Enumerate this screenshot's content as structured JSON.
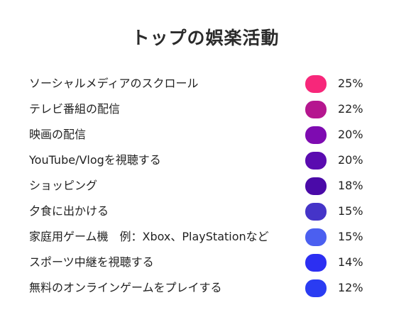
{
  "chart_data": {
    "type": "table",
    "title": "トップの娯楽活動",
    "categories": [
      "ソーシャルメディアのスクロール",
      "テレビ番組の配信",
      "映画の配信",
      "YouTube/Vlogを視聴する",
      "ショッピング",
      "夕食に出かける",
      "家庭用ゲーム機　例：Xbox、PlayStationなど",
      "スポーツ中継を視聴する",
      "無料のオンラインゲームをプレイする"
    ],
    "values": [
      25,
      22,
      20,
      20,
      18,
      15,
      15,
      14,
      12
    ],
    "value_labels": [
      "25%",
      "22%",
      "20%",
      "20%",
      "18%",
      "15%",
      "15%",
      "14%",
      "12%"
    ],
    "colors": [
      "#f7277a",
      "#b5168f",
      "#7e0bb1",
      "#5a0bb0",
      "#4a0aa8",
      "#4534c8",
      "#4b5ff0",
      "#2c2ff2",
      "#2a3cf2"
    ],
    "unit": "%"
  }
}
